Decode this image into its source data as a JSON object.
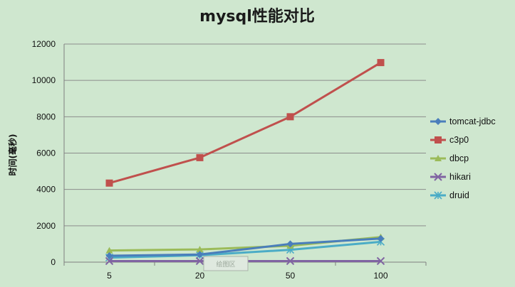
{
  "chart_data": {
    "type": "line",
    "title": "mysql性能对比",
    "xlabel": "",
    "ylabel": "时间(毫秒)",
    "categories": [
      "5",
      "20",
      "50",
      "100"
    ],
    "ylim": [
      0,
      12000
    ],
    "yticks": [
      0,
      2000,
      4000,
      6000,
      8000,
      10000,
      12000
    ],
    "grid": "horizontal",
    "legend_position": "right",
    "series": [
      {
        "name": "tomcat-jdbc",
        "values": [
          350,
          420,
          1000,
          1300
        ],
        "color": "#4a7ebb",
        "marker": "diamond"
      },
      {
        "name": "c3p0",
        "values": [
          4350,
          5750,
          8000,
          10980
        ],
        "color": "#c0504d",
        "marker": "square"
      },
      {
        "name": "dbcp",
        "values": [
          640,
          700,
          900,
          1380
        ],
        "color": "#9bbb59",
        "marker": "triangle"
      },
      {
        "name": "hikari",
        "values": [
          60,
          60,
          60,
          60
        ],
        "color": "#8064a2",
        "marker": "x"
      },
      {
        "name": "druid",
        "values": [
          250,
          380,
          680,
          1120
        ],
        "color": "#4bacc6",
        "marker": "star"
      }
    ]
  },
  "watermark": {
    "text": "绘图区"
  }
}
